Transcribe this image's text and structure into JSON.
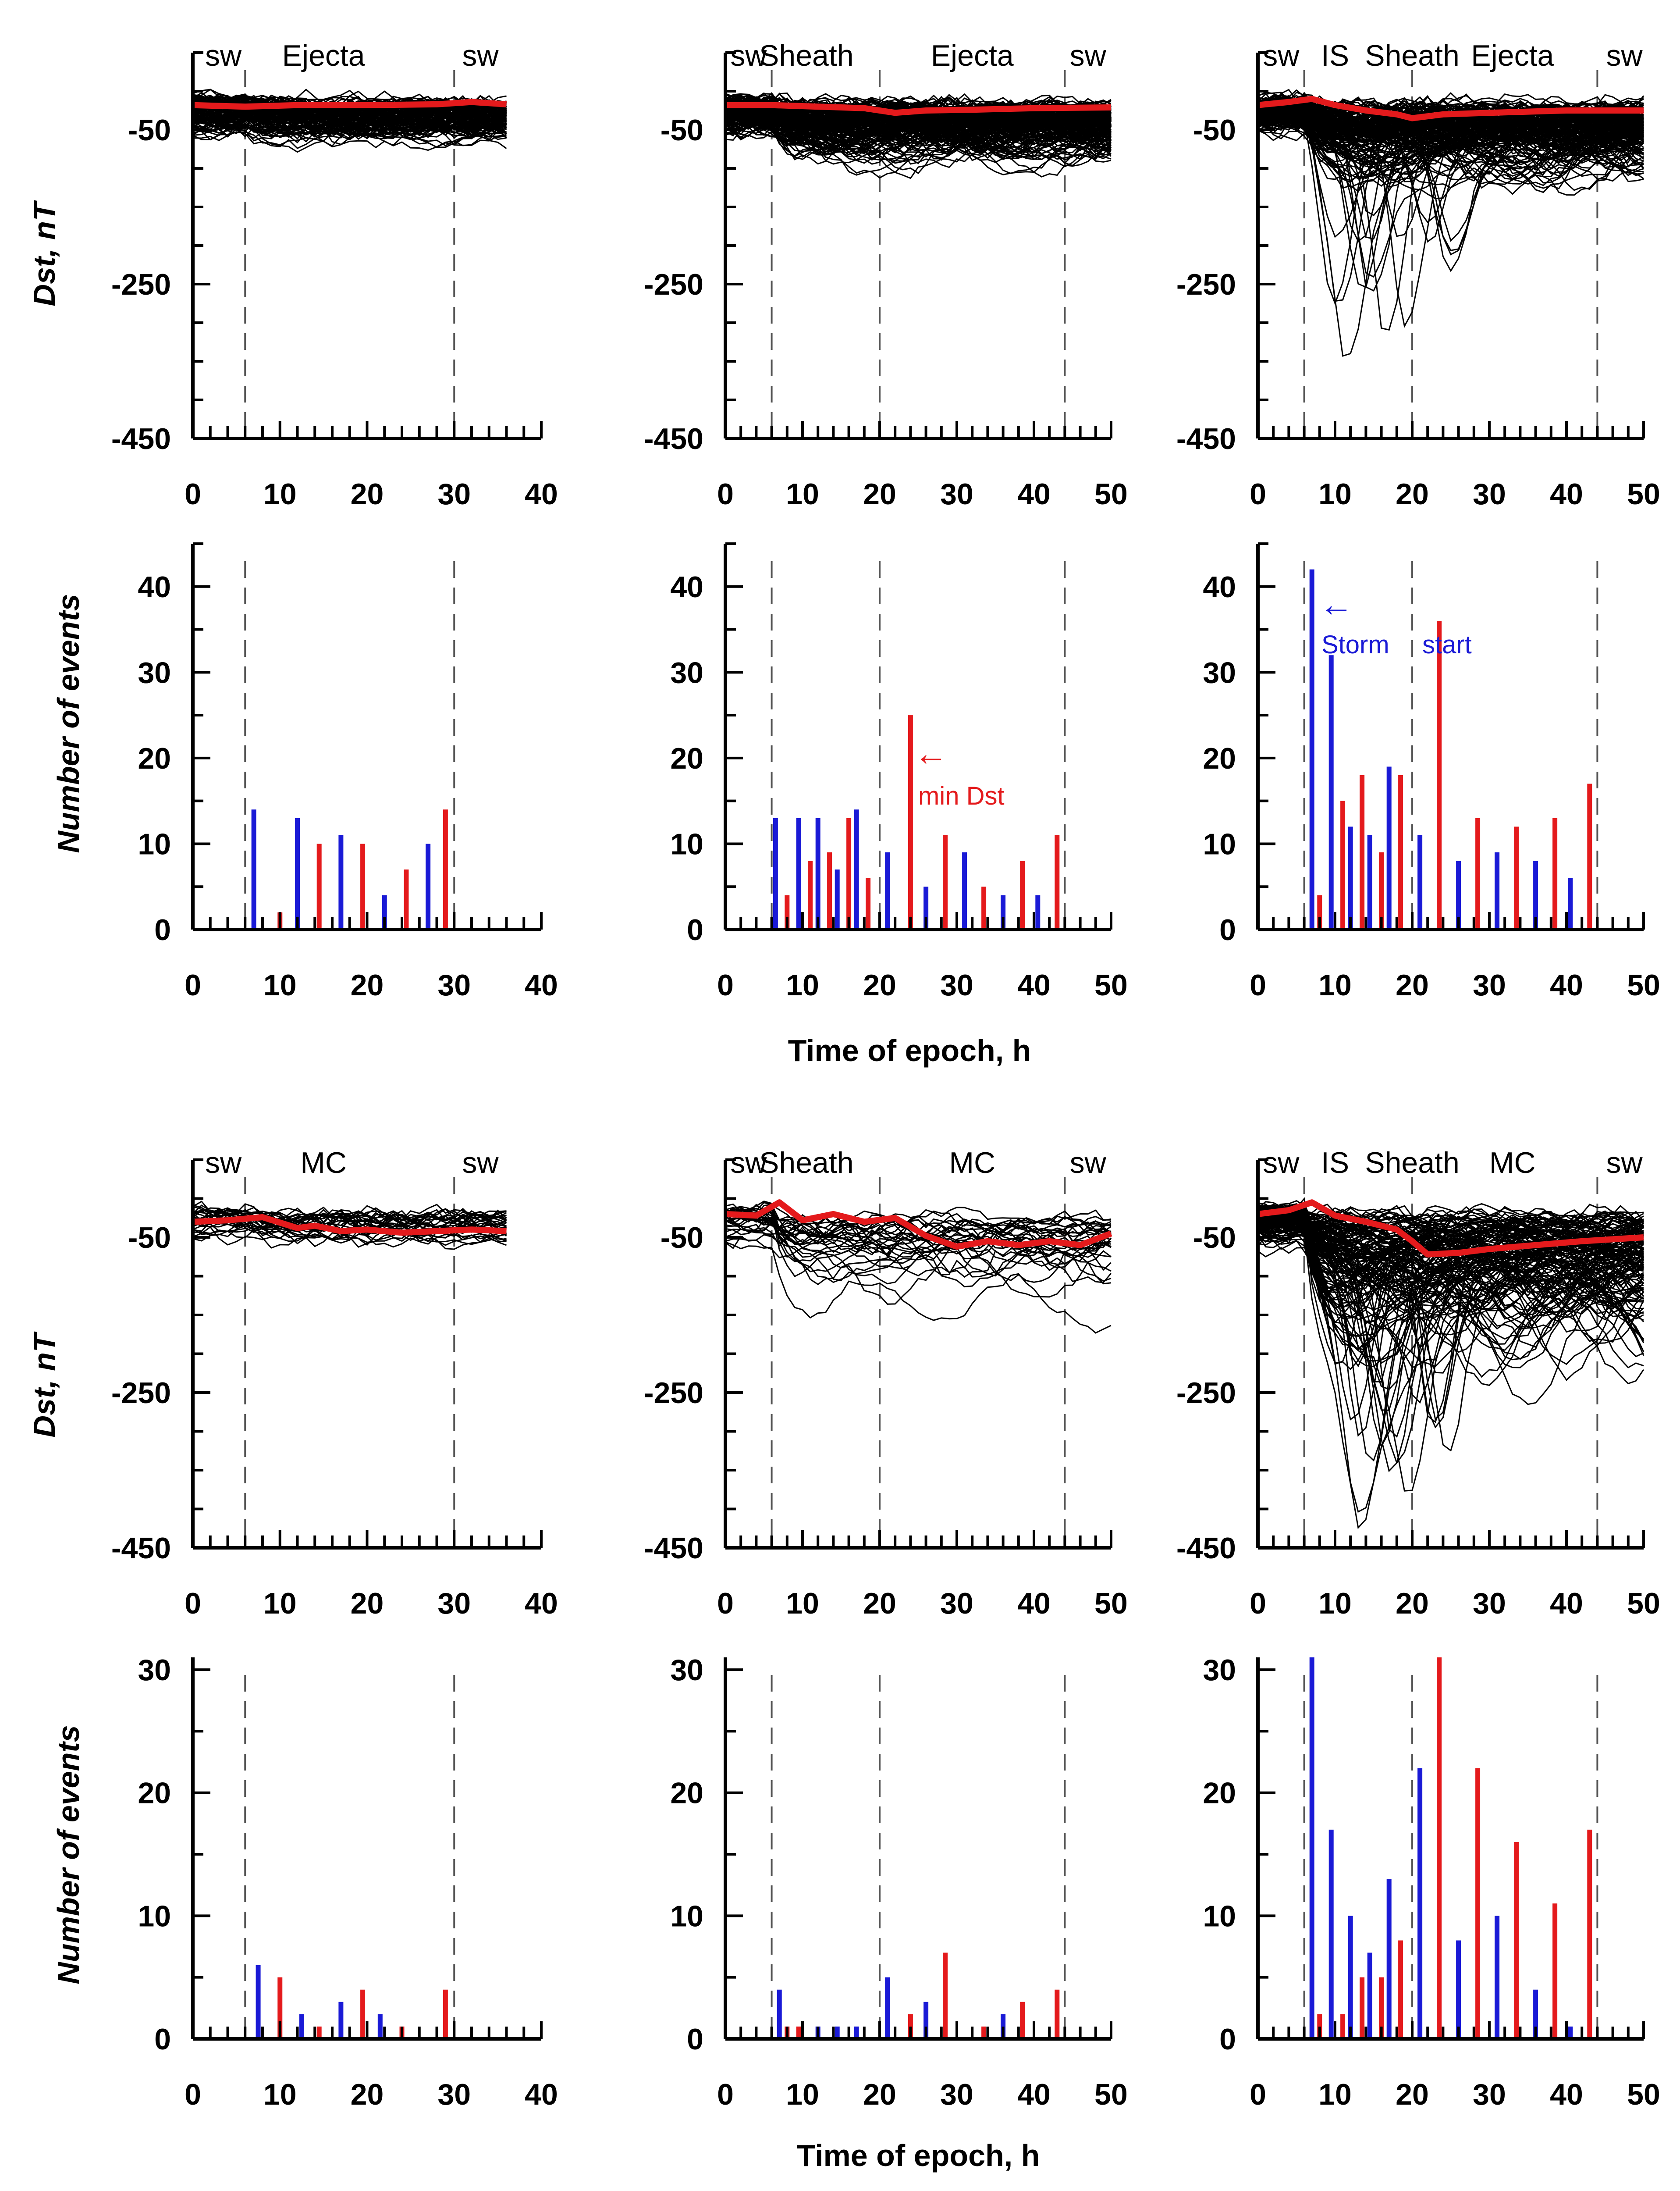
{
  "figure": {
    "xlabel": "Time of epoch, h",
    "dst_ylabel": "Dst, nT",
    "count_ylabel": "Number of events",
    "colors": {
      "traces": "#000000",
      "mean": "#e41a1c",
      "storm_start_bars": "#1a1ad6",
      "min_dst_bars": "#e41a1c",
      "boundaries": "#555555"
    },
    "annotations": {
      "min_dst": "min Dst",
      "storm_start": "Storm",
      "start": "start",
      "arrow": "←"
    }
  },
  "chart_data": [
    {
      "type": "line",
      "group": "Ejecta",
      "col": 0,
      "xlim": [
        0,
        40
      ],
      "ylim": [
        -450,
        50
      ],
      "xticks": [
        0,
        10,
        20,
        30,
        40
      ],
      "yticks": [
        -50,
        -250,
        -450
      ],
      "segments": [
        "sw",
        "Ejecta",
        "sw"
      ],
      "boundaries": [
        6,
        30
      ],
      "mean": {
        "x": [
          0,
          6,
          12,
          20,
          28,
          32,
          36
        ],
        "y": [
          -18,
          -20,
          -18,
          -18,
          -17,
          -14,
          -17
        ]
      }
    },
    {
      "type": "line",
      "group": "Ejecta",
      "col": 1,
      "xlim": [
        0,
        50
      ],
      "ylim": [
        -450,
        50
      ],
      "xticks": [
        0,
        10,
        20,
        30,
        40,
        50
      ],
      "yticks": [
        -50,
        -250,
        -450
      ],
      "segments": [
        "sw",
        "Sheath",
        "Ejecta",
        "sw"
      ],
      "boundaries": [
        6,
        20,
        44
      ],
      "mean": {
        "x": [
          0,
          6,
          12,
          18,
          22,
          26,
          32,
          40,
          50
        ],
        "y": [
          -18,
          -18,
          -20,
          -22,
          -28,
          -25,
          -24,
          -22,
          -21
        ]
      }
    },
    {
      "type": "line",
      "group": "Ejecta",
      "col": 2,
      "xlim": [
        0,
        50
      ],
      "ylim": [
        -450,
        50
      ],
      "xticks": [
        0,
        10,
        20,
        30,
        40,
        50
      ],
      "yticks": [
        -50,
        -250,
        -450
      ],
      "segments": [
        "sw",
        "IS",
        "Sheath",
        "Ejecta",
        "sw"
      ],
      "boundaries": [
        6,
        20,
        44
      ],
      "mean": {
        "x": [
          0,
          4,
          7,
          10,
          14,
          18,
          20,
          24,
          30,
          40,
          50
        ],
        "y": [
          -18,
          -14,
          -10,
          -18,
          -25,
          -30,
          -35,
          -30,
          -28,
          -25,
          -25
        ]
      }
    },
    {
      "type": "bar",
      "group": "Ejecta",
      "col": 0,
      "xlim": [
        0,
        40
      ],
      "ylim": [
        0,
        45
      ],
      "xticks": [
        0,
        10,
        20,
        30,
        40
      ],
      "yticks": [
        0,
        10,
        20,
        30,
        40
      ],
      "boundaries": [
        6,
        30
      ],
      "series": [
        {
          "x": [
            7,
            12,
            17,
            22,
            27
          ],
          "values": [
            14,
            13,
            11,
            4,
            10
          ]
        },
        {
          "x": [
            10,
            14.5,
            19.5,
            24.5,
            29
          ],
          "values": [
            2,
            10,
            10,
            7,
            14
          ]
        }
      ]
    },
    {
      "type": "bar",
      "group": "Ejecta",
      "col": 1,
      "xlim": [
        0,
        50
      ],
      "ylim": [
        0,
        45
      ],
      "xticks": [
        0,
        10,
        20,
        30,
        40,
        50
      ],
      "yticks": [
        0,
        10,
        20,
        30,
        40
      ],
      "boundaries": [
        6,
        20,
        44
      ],
      "series": [
        {
          "x": [
            6.5,
            9.5,
            12,
            14.5,
            17,
            21,
            26,
            31,
            36,
            40.5
          ],
          "values": [
            13,
            13,
            13,
            7,
            14,
            9,
            5,
            9,
            4,
            4
          ]
        },
        {
          "x": [
            8,
            11,
            13.5,
            16,
            18.5,
            24,
            28.5,
            33.5,
            38.5,
            43
          ],
          "values": [
            4,
            8,
            9,
            13,
            6,
            25,
            11,
            5,
            8,
            11
          ]
        }
      ]
    },
    {
      "type": "bar",
      "group": "Ejecta",
      "col": 2,
      "xlim": [
        0,
        50
      ],
      "ylim": [
        0,
        45
      ],
      "xticks": [
        0,
        10,
        20,
        30,
        40,
        50
      ],
      "yticks": [
        0,
        10,
        20,
        30,
        40
      ],
      "boundaries": [
        6,
        20,
        44
      ],
      "series": [
        {
          "x": [
            7,
            9.5,
            12,
            14.5,
            17,
            21,
            26,
            31,
            36,
            40.5
          ],
          "values": [
            42,
            32,
            12,
            11,
            19,
            11,
            8,
            9,
            8,
            6
          ]
        },
        {
          "x": [
            8,
            11,
            13.5,
            16,
            18.5,
            23.5,
            28.5,
            33.5,
            38.5,
            43
          ],
          "values": [
            4,
            15,
            18,
            9,
            18,
            36,
            13,
            12,
            13,
            17
          ]
        }
      ]
    },
    {
      "type": "line",
      "group": "MC",
      "col": 0,
      "xlim": [
        0,
        40
      ],
      "ylim": [
        -450,
        50
      ],
      "xticks": [
        0,
        10,
        20,
        30,
        40
      ],
      "yticks": [
        -50,
        -250,
        -450
      ],
      "segments": [
        "sw",
        "MC",
        "sw"
      ],
      "boundaries": [
        6,
        30
      ],
      "mean": {
        "x": [
          0,
          4,
          8,
          12,
          14,
          17,
          20,
          24,
          28,
          32,
          36
        ],
        "y": [
          -30,
          -28,
          -24,
          -38,
          -35,
          -42,
          -40,
          -44,
          -42,
          -40,
          -42
        ]
      }
    },
    {
      "type": "line",
      "group": "MC",
      "col": 1,
      "xlim": [
        0,
        50
      ],
      "ylim": [
        -450,
        50
      ],
      "xticks": [
        0,
        10,
        20,
        30,
        40,
        50
      ],
      "yticks": [
        -50,
        -250,
        -450
      ],
      "segments": [
        "sw",
        "Sheath",
        "MC",
        "sw"
      ],
      "boundaries": [
        6,
        20,
        44
      ],
      "mean": {
        "x": [
          0,
          4,
          7,
          10,
          14,
          18,
          22,
          26,
          30,
          34,
          38,
          42,
          46,
          50
        ],
        "y": [
          -20,
          -22,
          -5,
          -28,
          -20,
          -30,
          -25,
          -48,
          -62,
          -55,
          -60,
          -55,
          -60,
          -45
        ]
      }
    },
    {
      "type": "line",
      "group": "MC",
      "col": 2,
      "xlim": [
        0,
        50
      ],
      "ylim": [
        -450,
        50
      ],
      "xticks": [
        0,
        10,
        20,
        30,
        40,
        50
      ],
      "yticks": [
        -50,
        -250,
        -450
      ],
      "segments": [
        "sw",
        "IS",
        "Sheath",
        "MC",
        "sw"
      ],
      "boundaries": [
        6,
        20,
        44
      ],
      "mean": {
        "x": [
          0,
          4,
          7,
          10,
          14,
          18,
          20,
          22,
          26,
          30,
          36,
          42,
          50
        ],
        "y": [
          -20,
          -15,
          -5,
          -22,
          -30,
          -40,
          -55,
          -72,
          -70,
          -65,
          -60,
          -55,
          -50
        ]
      }
    },
    {
      "type": "bar",
      "group": "MC",
      "col": 0,
      "xlim": [
        0,
        40
      ],
      "ylim": [
        0,
        31
      ],
      "xticks": [
        0,
        10,
        20,
        30,
        40
      ],
      "yticks": [
        0,
        10,
        20,
        30
      ],
      "boundaries": [
        6,
        30
      ],
      "series": [
        {
          "x": [
            7.5,
            12.5,
            17,
            21.5
          ],
          "values": [
            6,
            2,
            3,
            2
          ]
        },
        {
          "x": [
            10,
            14.5,
            19.5,
            24,
            29
          ],
          "values": [
            5,
            1,
            4,
            1,
            4
          ]
        }
      ]
    },
    {
      "type": "bar",
      "group": "MC",
      "col": 1,
      "xlim": [
        0,
        50
      ],
      "ylim": [
        0,
        31
      ],
      "xticks": [
        0,
        10,
        20,
        30,
        40,
        50
      ],
      "yticks": [
        0,
        10,
        20,
        30
      ],
      "boundaries": [
        6,
        20,
        44
      ],
      "series": [
        {
          "x": [
            7,
            12,
            14.5,
            17,
            21,
            26,
            36
          ],
          "values": [
            4,
            1,
            1,
            1,
            5,
            3,
            2
          ]
        },
        {
          "x": [
            8,
            9.5,
            24,
            28.5,
            33.5,
            38.5,
            43
          ],
          "values": [
            1,
            1,
            2,
            7,
            1,
            3,
            4
          ]
        }
      ]
    },
    {
      "type": "bar",
      "group": "MC",
      "col": 2,
      "xlim": [
        0,
        50
      ],
      "ylim": [
        0,
        31
      ],
      "xticks": [
        0,
        10,
        20,
        30,
        40,
        50
      ],
      "yticks": [
        0,
        10,
        20,
        30
      ],
      "boundaries": [
        6,
        20,
        44
      ],
      "series": [
        {
          "x": [
            7,
            9.5,
            12,
            14.5,
            17,
            21,
            26,
            31,
            36,
            40.5
          ],
          "values": [
            31,
            17,
            10,
            7,
            13,
            22,
            8,
            10,
            4,
            1
          ]
        },
        {
          "x": [
            8,
            11,
            13.5,
            16,
            18.5,
            23.5,
            28.5,
            33.5,
            38.5,
            43
          ],
          "values": [
            2,
            2,
            5,
            5,
            8,
            31,
            22,
            16,
            11,
            17
          ]
        }
      ]
    }
  ]
}
